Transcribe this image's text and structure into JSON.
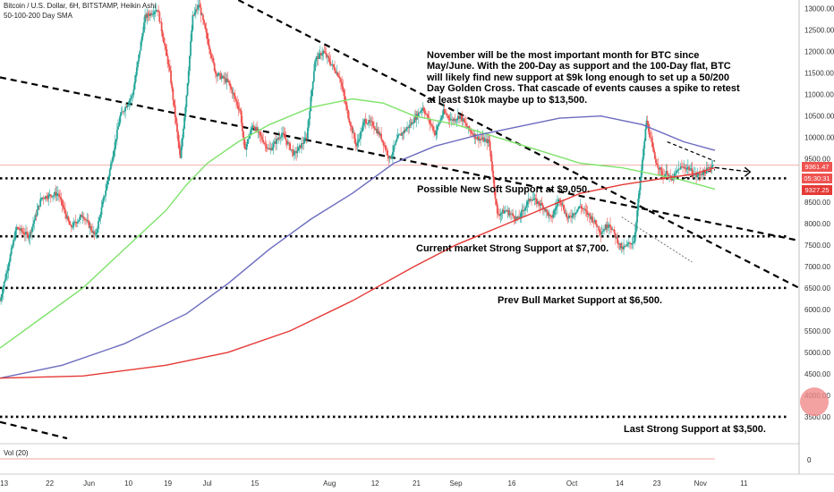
{
  "header": {
    "symbol": "Bitcoin / U.S. Dollar, 6H, BITSTAMP, Heikin Ashi",
    "indicator": "50-100-200 Day SMA",
    "volume_label": "Vol (20)",
    "volume_zero": "0"
  },
  "annotations": {
    "note": "November will be the most important month for BTC since May/June. With the 200-Day as support and the 100-Day flat, BTC will likely find new support at $9k long enough to set up a 50/200 Day Golden Cross. That cascade of events causes a spike to retest at least $10k maybe up to $13,500.",
    "soft_support": "Possible New Soft Support at $9,050.",
    "strong_support": "Current market Strong Support at $7,700.",
    "bull_support": "Prev Bull Market Support at $6,500.",
    "last_support": "Last Strong Support at $3,500."
  },
  "price_tags": {
    "last_price": "9361.47",
    "countdown": "05:30:31",
    "sma_value": "9327.25"
  },
  "colors": {
    "up": "#26a69a",
    "down": "#ef5350",
    "sma50": "#7ee36a",
    "sma100": "#6b6bbf",
    "sma200": "#e53935",
    "price_line": "#f09a9a"
  },
  "chart_data": {
    "type": "line",
    "style": "heikin-ashi candles with moving averages",
    "y_ticks": [
      "13000.00",
      "12500.00",
      "12000.00",
      "11500.00",
      "11000.00",
      "10500.00",
      "10000.00",
      "9500.00",
      "9000.00",
      "8500.00",
      "8000.00",
      "7500.00",
      "7000.00",
      "6500.00",
      "6000.00",
      "5500.00",
      "5000.00",
      "4500.00",
      "4000.00",
      "3500.00"
    ],
    "ylim": [
      3000,
      13200
    ],
    "x_ticks": [
      "13",
      "22",
      "Jun",
      "10",
      "19",
      "Jul",
      "15",
      "Aug",
      "12",
      "21",
      "Sep",
      "16",
      "Oct",
      "14",
      "23",
      "Nov",
      "11"
    ],
    "x_tick_pos": [
      2,
      24,
      43,
      62,
      81,
      100,
      123,
      159,
      181,
      201,
      220,
      247,
      276,
      299,
      317,
      338,
      359
    ],
    "xlim": [
      0,
      380
    ],
    "price": {
      "t": [
        0,
        8,
        14,
        20,
        28,
        34,
        40,
        46,
        52,
        58,
        64,
        70,
        76,
        82,
        87,
        90,
        93,
        96,
        100,
        104,
        110,
        116,
        118,
        122,
        126,
        130,
        136,
        142,
        148,
        152,
        156,
        160,
        164,
        168,
        172,
        176,
        180,
        184,
        188,
        192,
        198,
        204,
        210,
        214,
        218,
        222,
        226,
        230,
        236,
        240,
        244,
        250,
        256,
        262,
        266,
        270,
        274,
        280,
        286,
        290,
        294,
        300,
        306,
        312,
        316,
        320,
        322,
        324,
        328,
        332,
        336,
        340,
        344
      ],
      "value": [
        6200,
        7900,
        7700,
        8600,
        8700,
        7900,
        8200,
        7700,
        9000,
        10500,
        11000,
        12800,
        13000,
        11500,
        9500,
        11000,
        12800,
        13100,
        12300,
        11500,
        11300,
        10600,
        9700,
        10300,
        10000,
        9700,
        10100,
        9600,
        10000,
        11800,
        12000,
        11700,
        11400,
        10500,
        9800,
        10400,
        10300,
        10000,
        9500,
        10000,
        10300,
        10700,
        10100,
        10600,
        10400,
        10500,
        10200,
        10000,
        9900,
        8200,
        8300,
        8100,
        8600,
        8400,
        8100,
        8600,
        8100,
        8400,
        8100,
        7800,
        8000,
        7400,
        7600,
        10400,
        9500,
        9100,
        9200,
        9000,
        9300,
        9300,
        9100,
        9200,
        9361
      ]
    },
    "series": [
      {
        "name": "",
        "t": [
          0,
          20,
          40,
          60,
          80,
          90,
          100,
          115,
          130,
          150,
          170,
          185,
          200,
          220,
          240,
          260,
          280,
          300,
          320,
          330,
          345
        ],
        "value": [
          5100,
          5800,
          6500,
          7400,
          8300,
          8900,
          9400,
          9900,
          10300,
          10700,
          10900,
          10800,
          10500,
          10300,
          10000,
          9700,
          9400,
          9300,
          9100,
          9000,
          8800
        ]
      },
      {
        "name": "",
        "t": [
          0,
          30,
          60,
          90,
          110,
          130,
          150,
          170,
          190,
          210,
          230,
          250,
          270,
          290,
          310,
          330,
          345
        ],
        "value": [
          4400,
          4700,
          5200,
          5900,
          6600,
          7400,
          8100,
          8700,
          9400,
          9800,
          10050,
          10250,
          10450,
          10500,
          10300,
          9900,
          9700
        ]
      },
      {
        "name": "",
        "t": [
          0,
          40,
          80,
          110,
          140,
          170,
          200,
          220,
          240,
          260,
          280,
          300,
          320,
          335,
          345
        ],
        "value": [
          4400,
          4450,
          4700,
          5000,
          5500,
          6200,
          7000,
          7500,
          7900,
          8300,
          8700,
          8900,
          9050,
          9150,
          9300
        ]
      }
    ],
    "levels": [
      9050,
      7700,
      6500,
      3500
    ],
    "current_price": 9361.47
  }
}
